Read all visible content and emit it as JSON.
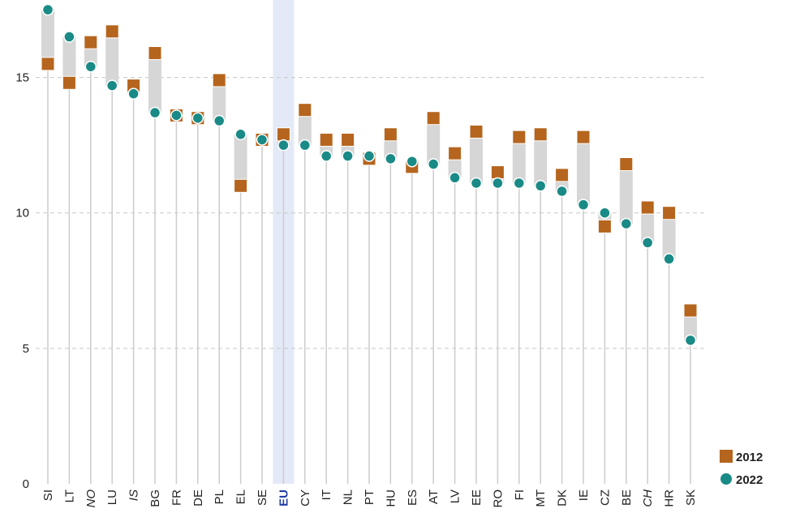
{
  "chart_data": {
    "type": "dot-range",
    "categories": [
      "SI",
      "LT",
      "NO",
      "LU",
      "IS",
      "BG",
      "FR",
      "DE",
      "PL",
      "EL",
      "SE",
      "EU",
      "CY",
      "IT",
      "NL",
      "PT",
      "HU",
      "ES",
      "AT",
      "LV",
      "EE",
      "RO",
      "FI",
      "MT",
      "DK",
      "IE",
      "CZ",
      "BE",
      "CH",
      "HR",
      "SK"
    ],
    "italic_categories": [
      "NO",
      "IS",
      "CH"
    ],
    "highlight_category": "EU",
    "series": [
      {
        "name": "2012",
        "marker": "square",
        "color": "#b5651d",
        "values": [
          15.5,
          14.8,
          16.3,
          16.7,
          14.7,
          15.9,
          13.6,
          13.5,
          14.9,
          11.0,
          12.7,
          12.9,
          13.8,
          12.7,
          12.7,
          12.0,
          12.9,
          11.7,
          13.5,
          12.2,
          13.0,
          11.5,
          12.8,
          12.9,
          11.4,
          12.8,
          9.5,
          11.8,
          10.2,
          10.0,
          6.4
        ]
      },
      {
        "name": "2022",
        "marker": "circle",
        "color": "#1a8a86",
        "values": [
          17.5,
          16.5,
          15.4,
          14.7,
          14.4,
          13.7,
          13.6,
          13.5,
          13.4,
          12.9,
          12.7,
          12.5,
          12.5,
          12.1,
          12.1,
          12.1,
          12.0,
          11.9,
          11.8,
          11.3,
          11.1,
          11.1,
          11.1,
          11.0,
          10.8,
          10.3,
          10.0,
          9.6,
          8.9,
          8.3,
          5.3
        ]
      }
    ],
    "ylim": [
      0,
      17.5
    ],
    "yticks": [
      "0",
      "5",
      "10",
      "15"
    ],
    "ytick_values": [
      0,
      5,
      10,
      15
    ],
    "grid": true,
    "legend_position": "bottom-right",
    "colors": {
      "range_bar": "#d6d6d6",
      "stem": "#cccccc",
      "grid": "#c8c8c8",
      "highlight_band": "#e4e9f7"
    }
  }
}
